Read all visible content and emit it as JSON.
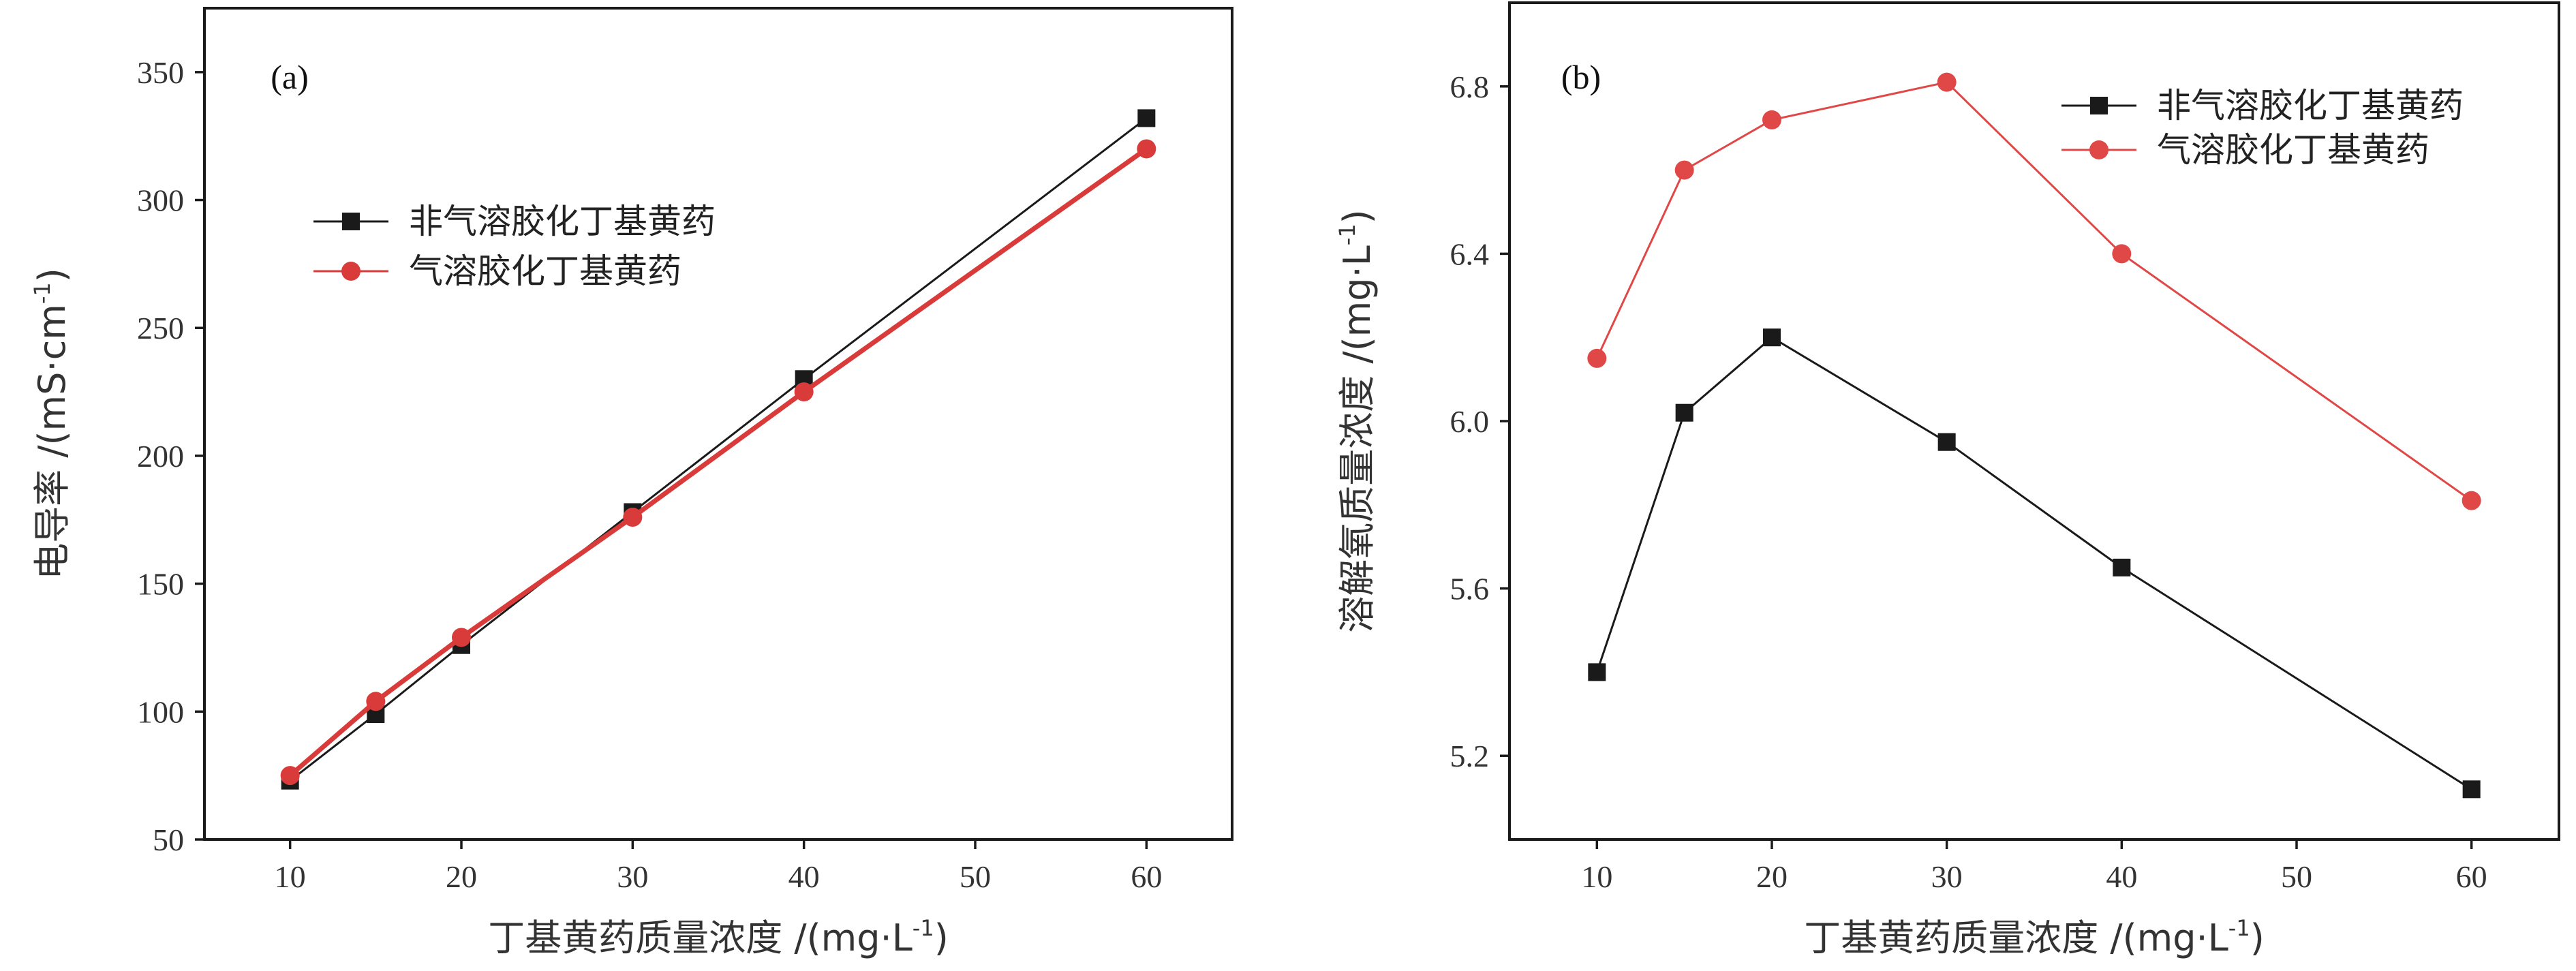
{
  "chart_data": [
    {
      "type": "line",
      "panel_label": "(a)",
      "xlabel": {
        "main": "丁基黄药质量浓度 /(mg·L",
        "sup": "-1",
        "tail": ")"
      },
      "ylabel": {
        "main": "电导率 /(mS·cm",
        "sup": "-1",
        "tail": ")"
      },
      "xlim": [
        5,
        65
      ],
      "ylim": [
        50,
        375
      ],
      "xticks": [
        10,
        20,
        30,
        40,
        50,
        60
      ],
      "yticks": [
        50,
        100,
        150,
        200,
        250,
        300,
        350
      ],
      "legend_position": "upper-left",
      "series": [
        {
          "name": "非气溶胶化丁基黄药",
          "color": "#1a1a1a",
          "marker": "square",
          "line_width": 3,
          "x": [
            10,
            15,
            20,
            30,
            40,
            60
          ],
          "y": [
            73,
            99,
            126,
            178,
            230,
            332
          ]
        },
        {
          "name": "气溶胶化丁基黄药",
          "color": "#d93a3a",
          "marker": "circle",
          "line_width": 7,
          "x": [
            10,
            15,
            20,
            30,
            40,
            60
          ],
          "y": [
            75,
            104,
            129,
            176,
            225,
            320
          ]
        }
      ]
    },
    {
      "type": "line",
      "panel_label": "(b)",
      "xlabel": {
        "main": "丁基黄药质量浓度 /(mg·L",
        "sup": "-1",
        "tail": ")"
      },
      "ylabel": {
        "main": "溶解氧质量浓度 /(mg·L",
        "sup": "-1",
        "tail": ")"
      },
      "xlim": [
        5,
        65
      ],
      "ylim": [
        5.0,
        7.0
      ],
      "xticks": [
        10,
        20,
        30,
        40,
        50,
        60
      ],
      "yticks": [
        5.2,
        5.6,
        6.0,
        6.4,
        6.8
      ],
      "legend_position": "upper-right",
      "series": [
        {
          "name": "非气溶胶化丁基黄药",
          "color": "#1a1a1a",
          "marker": "square",
          "line_width": 3,
          "x": [
            10,
            15,
            20,
            30,
            40,
            60
          ],
          "y": [
            5.4,
            6.02,
            6.2,
            5.95,
            5.65,
            5.12
          ]
        },
        {
          "name": "气溶胶化丁基黄药",
          "color": "#e04848",
          "marker": "circle",
          "line_width": 3,
          "x": [
            10,
            15,
            20,
            30,
            40,
            60
          ],
          "y": [
            6.15,
            6.6,
            6.72,
            6.81,
            6.4,
            5.81
          ]
        }
      ]
    }
  ]
}
